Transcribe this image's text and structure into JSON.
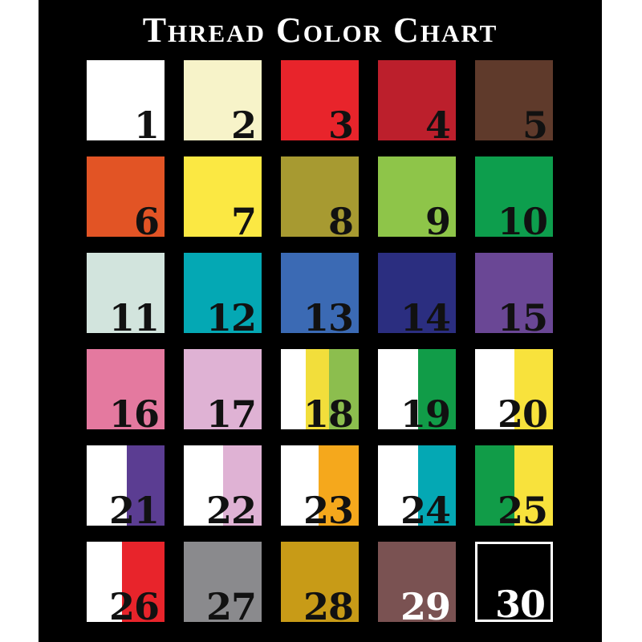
{
  "title": "Thread Color Chart",
  "colors": {
    "page_margin": "#ffffff",
    "panel_background": "#000000",
    "title_text": "#ffffff",
    "number_default": "#111111",
    "number_light": "#ffffff"
  },
  "chart_data": {
    "type": "table",
    "title": "Thread Color Chart",
    "columns": [
      "number",
      "colors"
    ],
    "rows": [
      [
        "1",
        [
          "white #ffffff"
        ]
      ],
      [
        "2",
        [
          "cream #f7f3c9"
        ]
      ],
      [
        "3",
        [
          "bright-red #e8242b"
        ]
      ],
      [
        "4",
        [
          "crimson #bc1f2c"
        ]
      ],
      [
        "5",
        [
          "brown #5f3a2b"
        ]
      ],
      [
        "6",
        [
          "orange #e25425"
        ]
      ],
      [
        "7",
        [
          "yellow #fbe843"
        ]
      ],
      [
        "8",
        [
          "olive #a79a31"
        ]
      ],
      [
        "9",
        [
          "apple-green #8ec549"
        ]
      ],
      [
        "10",
        [
          "green #0d9e4d"
        ]
      ],
      [
        "11",
        [
          "pale-mint #d2e4dd"
        ]
      ],
      [
        "12",
        [
          "teal #04a8b4"
        ]
      ],
      [
        "13",
        [
          "blue #3b6ab4"
        ]
      ],
      [
        "14",
        [
          "navy #2b2e80"
        ]
      ],
      [
        "15",
        [
          "purple #6a4795"
        ]
      ],
      [
        "16",
        [
          "pink #e4799f"
        ]
      ],
      [
        "17",
        [
          "light-pink #dfb2d4"
        ]
      ],
      [
        "18",
        [
          "white #ffffff",
          "yellow #f2de3b",
          "yellow-green #8cbe4e"
        ]
      ],
      [
        "19",
        [
          "white #ffffff",
          "green #119c48"
        ]
      ],
      [
        "20",
        [
          "white #ffffff",
          "yellow #f8e23c"
        ]
      ],
      [
        "21",
        [
          "white #ffffff",
          "dark-purple #5b3d92"
        ]
      ],
      [
        "22",
        [
          "white #ffffff",
          "light-pink #dfb2d4"
        ]
      ],
      [
        "23",
        [
          "white #ffffff",
          "amber #f5a81c"
        ]
      ],
      [
        "24",
        [
          "white #ffffff",
          "teal #04a8b4"
        ]
      ],
      [
        "25",
        [
          "green #119c48",
          "yellow #f8e23c"
        ]
      ],
      [
        "26",
        [
          "white #ffffff",
          "red #e8242b"
        ]
      ],
      [
        "27",
        [
          "gray #8a8a8d"
        ]
      ],
      [
        "28",
        [
          "gold #c89b17"
        ]
      ],
      [
        "29",
        [
          "mauve-brown #7a5252"
        ]
      ],
      [
        "30",
        [
          "black #000000"
        ]
      ]
    ]
  },
  "swatches": [
    {
      "number": "1",
      "number_color": "#111111",
      "stripes": [
        {
          "color": "#ffffff",
          "fraction": 1
        }
      ]
    },
    {
      "number": "2",
      "number_color": "#111111",
      "stripes": [
        {
          "color": "#f7f3c9",
          "fraction": 1
        }
      ]
    },
    {
      "number": "3",
      "number_color": "#111111",
      "stripes": [
        {
          "color": "#e8242b",
          "fraction": 1
        }
      ]
    },
    {
      "number": "4",
      "number_color": "#111111",
      "stripes": [
        {
          "color": "#bc1f2c",
          "fraction": 1
        }
      ]
    },
    {
      "number": "5",
      "number_color": "#111111",
      "stripes": [
        {
          "color": "#5f3a2b",
          "fraction": 1
        }
      ]
    },
    {
      "number": "6",
      "number_color": "#111111",
      "stripes": [
        {
          "color": "#e25425",
          "fraction": 1
        }
      ]
    },
    {
      "number": "7",
      "number_color": "#111111",
      "stripes": [
        {
          "color": "#fbe843",
          "fraction": 1
        }
      ]
    },
    {
      "number": "8",
      "number_color": "#111111",
      "stripes": [
        {
          "color": "#a79a31",
          "fraction": 1
        }
      ]
    },
    {
      "number": "9",
      "number_color": "#111111",
      "stripes": [
        {
          "color": "#8ec549",
          "fraction": 1
        }
      ]
    },
    {
      "number": "10",
      "number_color": "#111111",
      "stripes": [
        {
          "color": "#0d9e4d",
          "fraction": 1
        }
      ]
    },
    {
      "number": "11",
      "number_color": "#111111",
      "stripes": [
        {
          "color": "#d2e4dd",
          "fraction": 1
        }
      ]
    },
    {
      "number": "12",
      "number_color": "#111111",
      "stripes": [
        {
          "color": "#04a8b4",
          "fraction": 1
        }
      ]
    },
    {
      "number": "13",
      "number_color": "#111111",
      "stripes": [
        {
          "color": "#3b6ab4",
          "fraction": 1
        }
      ]
    },
    {
      "number": "14",
      "number_color": "#111111",
      "stripes": [
        {
          "color": "#2b2e80",
          "fraction": 1
        }
      ]
    },
    {
      "number": "15",
      "number_color": "#111111",
      "stripes": [
        {
          "color": "#6a4795",
          "fraction": 1
        }
      ]
    },
    {
      "number": "16",
      "number_color": "#111111",
      "stripes": [
        {
          "color": "#e4799f",
          "fraction": 1
        }
      ]
    },
    {
      "number": "17",
      "number_color": "#111111",
      "stripes": [
        {
          "color": "#dfb2d4",
          "fraction": 1
        }
      ]
    },
    {
      "number": "18",
      "number_color": "#111111",
      "stripes": [
        {
          "color": "#ffffff",
          "fraction": 0.32
        },
        {
          "color": "#f2de3b",
          "fraction": 0.3
        },
        {
          "color": "#8cbe4e",
          "fraction": 0.38
        }
      ]
    },
    {
      "number": "19",
      "number_color": "#111111",
      "stripes": [
        {
          "color": "#ffffff",
          "fraction": 0.52
        },
        {
          "color": "#119c48",
          "fraction": 0.48
        }
      ]
    },
    {
      "number": "20",
      "number_color": "#111111",
      "stripes": [
        {
          "color": "#ffffff",
          "fraction": 0.5
        },
        {
          "color": "#f8e23c",
          "fraction": 0.5
        }
      ]
    },
    {
      "number": "21",
      "number_color": "#111111",
      "stripes": [
        {
          "color": "#ffffff",
          "fraction": 0.52
        },
        {
          "color": "#5b3d92",
          "fraction": 0.48
        }
      ]
    },
    {
      "number": "22",
      "number_color": "#111111",
      "stripes": [
        {
          "color": "#ffffff",
          "fraction": 0.5
        },
        {
          "color": "#dfb2d4",
          "fraction": 0.5
        }
      ]
    },
    {
      "number": "23",
      "number_color": "#111111",
      "stripes": [
        {
          "color": "#ffffff",
          "fraction": 0.48
        },
        {
          "color": "#f5a81c",
          "fraction": 0.52
        }
      ]
    },
    {
      "number": "24",
      "number_color": "#111111",
      "stripes": [
        {
          "color": "#ffffff",
          "fraction": 0.52
        },
        {
          "color": "#04a8b4",
          "fraction": 0.48
        }
      ]
    },
    {
      "number": "25",
      "number_color": "#111111",
      "stripes": [
        {
          "color": "#119c48",
          "fraction": 0.5
        },
        {
          "color": "#f8e23c",
          "fraction": 0.5
        }
      ]
    },
    {
      "number": "26",
      "number_color": "#111111",
      "stripes": [
        {
          "color": "#ffffff",
          "fraction": 0.45
        },
        {
          "color": "#e8242b",
          "fraction": 0.55
        }
      ]
    },
    {
      "number": "27",
      "number_color": "#111111",
      "stripes": [
        {
          "color": "#8a8a8d",
          "fraction": 1
        }
      ]
    },
    {
      "number": "28",
      "number_color": "#111111",
      "stripes": [
        {
          "color": "#c89b17",
          "fraction": 1
        }
      ]
    },
    {
      "number": "29",
      "number_color": "#ffffff",
      "stripes": [
        {
          "color": "#7a5252",
          "fraction": 1
        }
      ]
    },
    {
      "number": "30",
      "number_color": "#ffffff",
      "border": "#ffffff",
      "stripes": [
        {
          "color": "#000000",
          "fraction": 1
        }
      ]
    }
  ]
}
